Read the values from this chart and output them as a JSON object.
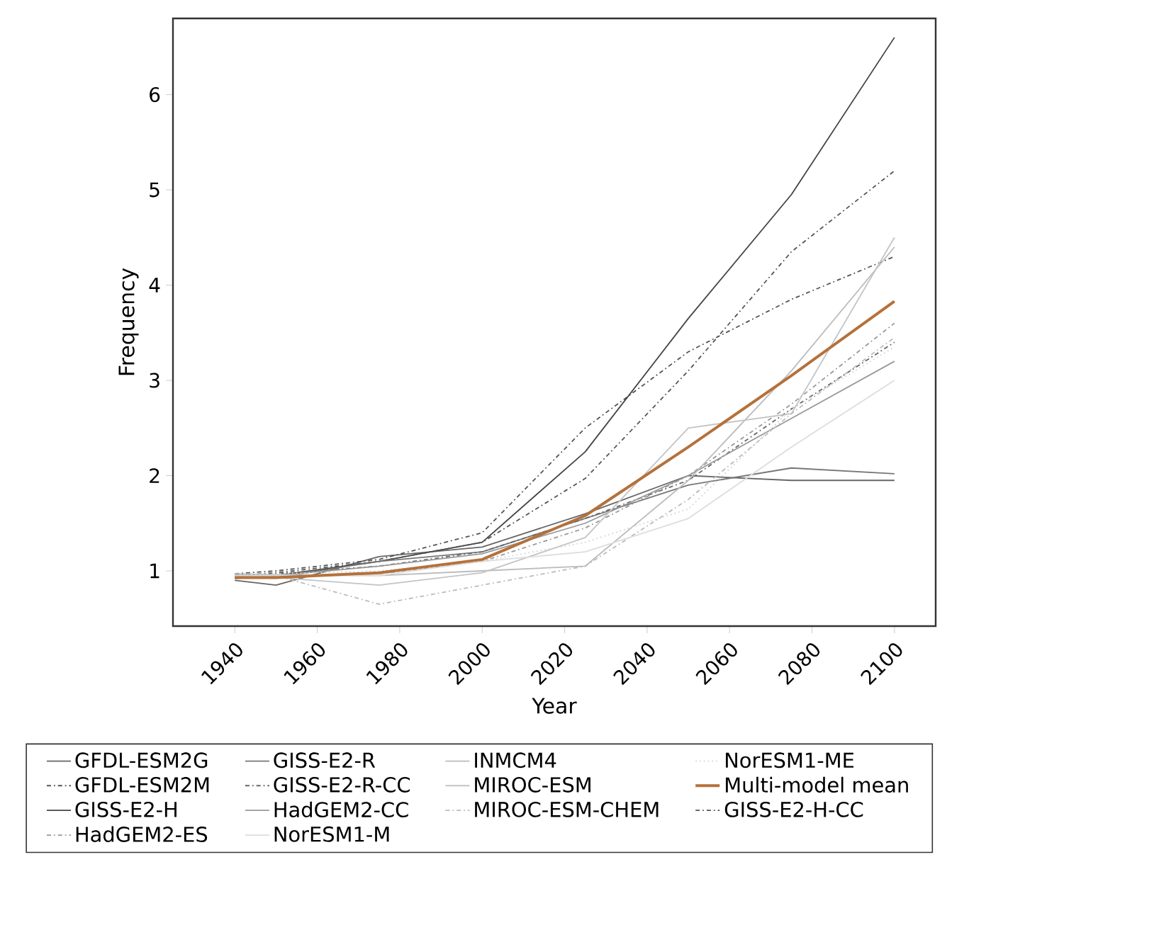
{
  "chart_data": {
    "type": "line",
    "xlabel": "Year",
    "ylabel": "Frequency",
    "x": [
      1940,
      1950,
      1975,
      2000,
      2025,
      2050,
      2075,
      2100
    ],
    "xlim": [
      1925,
      2110
    ],
    "xticks": [
      1940,
      1960,
      1980,
      2000,
      2020,
      2040,
      2060,
      2080,
      2100
    ],
    "ylim": [
      0.42,
      6.8
    ],
    "yticks": [
      1,
      2,
      3,
      4,
      5,
      6
    ],
    "grid": false,
    "legend": "bottom",
    "marker": "none",
    "series": [
      {
        "name": "GFDL-ESM2G",
        "color": "#666666",
        "line_style": "solid",
        "values": [
          0.9,
          0.85,
          1.15,
          1.25,
          1.6,
          2.0,
          1.95,
          1.95
        ]
      },
      {
        "name": "GFDL-ESM2M",
        "color": "#555555",
        "line_style": "dashed",
        "values": [
          0.97,
          1.0,
          1.12,
          1.4,
          2.5,
          3.3,
          3.85,
          4.3
        ]
      },
      {
        "name": "GISS-E2-H",
        "color": "#444444",
        "line_style": "solid",
        "values": [
          0.95,
          0.95,
          1.1,
          1.3,
          2.25,
          3.65,
          4.95,
          6.6
        ]
      },
      {
        "name": "GISS-E2-H-CC",
        "color": "#555555",
        "line_style": "dashed",
        "values": [
          0.95,
          0.98,
          1.1,
          1.3,
          1.97,
          3.1,
          4.35,
          5.2
        ]
      },
      {
        "name": "GISS-E2-R",
        "color": "#777777",
        "line_style": "solid",
        "values": [
          0.95,
          0.93,
          1.1,
          1.2,
          1.55,
          1.9,
          2.08,
          2.02
        ]
      },
      {
        "name": "GISS-E2-R-CC",
        "color": "#666666",
        "line_style": "dashed",
        "values": [
          0.95,
          0.97,
          1.05,
          1.2,
          1.55,
          1.95,
          2.7,
          3.4
        ]
      },
      {
        "name": "HadGEM2-CC",
        "color": "#999999",
        "line_style": "solid",
        "values": [
          0.92,
          0.95,
          1.05,
          1.18,
          1.5,
          2.0,
          2.6,
          3.2
        ]
      },
      {
        "name": "HadGEM2-ES",
        "color": "#999999",
        "line_style": "dashed",
        "values": [
          0.93,
          0.95,
          0.97,
          1.1,
          1.45,
          2.0,
          2.75,
          3.6
        ]
      },
      {
        "name": "INMCM4",
        "color": "#bbbbbb",
        "line_style": "solid",
        "values": [
          0.97,
          0.96,
          0.95,
          1.0,
          1.05,
          1.95,
          3.1,
          4.4
        ]
      },
      {
        "name": "MIROC-ESM",
        "color": "#c4c4c4",
        "line_style": "solid",
        "values": [
          0.95,
          0.93,
          0.85,
          0.98,
          1.35,
          2.5,
          2.65,
          4.5
        ]
      },
      {
        "name": "MIROC-ESM-CHEM",
        "color": "#bbbbbb",
        "line_style": "dashed",
        "values": [
          0.95,
          0.95,
          0.65,
          0.85,
          1.05,
          1.75,
          2.65,
          3.45
        ]
      },
      {
        "name": "NorESM1-M",
        "color": "#dddddd",
        "line_style": "solid",
        "values": [
          0.95,
          0.95,
          0.95,
          1.1,
          1.2,
          1.55,
          2.3,
          3.0
        ]
      },
      {
        "name": "NorESM1-ME",
        "color": "#d4d4d4",
        "line_style": "dotted",
        "values": [
          0.95,
          0.97,
          1.0,
          1.1,
          1.3,
          1.65,
          2.7,
          3.35
        ]
      },
      {
        "name": "Multi-model mean",
        "color": "#b5713a",
        "line_style": "solid",
        "values": [
          0.93,
          0.93,
          0.98,
          1.12,
          1.58,
          2.3,
          3.05,
          3.83
        ]
      }
    ]
  }
}
